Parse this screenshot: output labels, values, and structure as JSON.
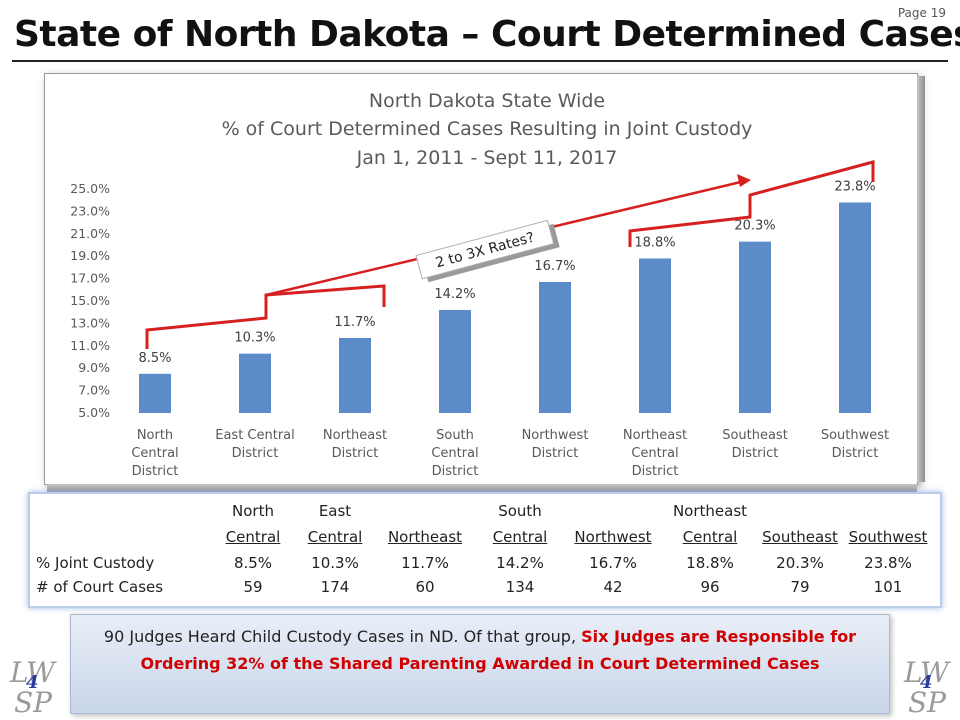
{
  "page": {
    "number_label": "Page 19",
    "title": "State of North Dakota – Court Determined Cases"
  },
  "chart_data": {
    "type": "bar",
    "title_lines": [
      "North Dakota State Wide",
      "% of Court Determined Cases Resulting in Joint Custody",
      "Jan 1, 2011 - Sept 11, 2017"
    ],
    "categories": [
      [
        "North",
        "Central",
        "District"
      ],
      [
        "East Central",
        "District"
      ],
      [
        "Northeast",
        "District"
      ],
      [
        "South",
        "Central",
        "District"
      ],
      [
        "Northwest",
        "District"
      ],
      [
        "Northeast",
        "Central",
        "District"
      ],
      [
        "Southeast",
        "District"
      ],
      [
        "Southwest",
        "District"
      ]
    ],
    "values": [
      8.5,
      10.3,
      11.7,
      14.2,
      16.7,
      18.8,
      20.3,
      23.8
    ],
    "data_labels": [
      "8.5%",
      "10.3%",
      "11.7%",
      "14.2%",
      "16.7%",
      "18.8%",
      "20.3%",
      "23.8%"
    ],
    "ylim": [
      5.0,
      25.0
    ],
    "yticks": [
      "5.0%",
      "7.0%",
      "9.0%",
      "11.0%",
      "13.0%",
      "15.0%",
      "17.0%",
      "19.0%",
      "21.0%",
      "23.0%",
      "25.0%"
    ],
    "bar_color": "#5b8cc9",
    "annotation": "2 to 3X Rates?",
    "annotation_color": "#d62020",
    "grid": false,
    "legend": "none"
  },
  "table": {
    "header_top": [
      "North",
      "East",
      "",
      "South",
      "",
      "Northeast",
      "",
      ""
    ],
    "header_bottom": [
      "Central",
      "Central",
      "Northeast",
      "Central",
      "Northwest",
      "Central",
      "Southeast",
      "Southwest"
    ],
    "rows": [
      {
        "label": "% Joint Custody",
        "values": [
          "8.5%",
          "10.3%",
          "11.7%",
          "14.2%",
          "16.7%",
          "18.8%",
          "20.3%",
          "23.8%"
        ]
      },
      {
        "label": "# of Court Cases",
        "values": [
          "59",
          "174",
          "60",
          "134",
          "42",
          "96",
          "79",
          "101"
        ]
      }
    ]
  },
  "note": {
    "plain": "90 Judges Heard Child Custody Cases in ND.  Of that group, ",
    "red": "Six Judges are Responsible for Ordering 32% of the Shared Parenting Awarded in Court Determined Cases"
  },
  "logo": {
    "line1": "LW",
    "line2": "SP",
    "digit": "4"
  }
}
